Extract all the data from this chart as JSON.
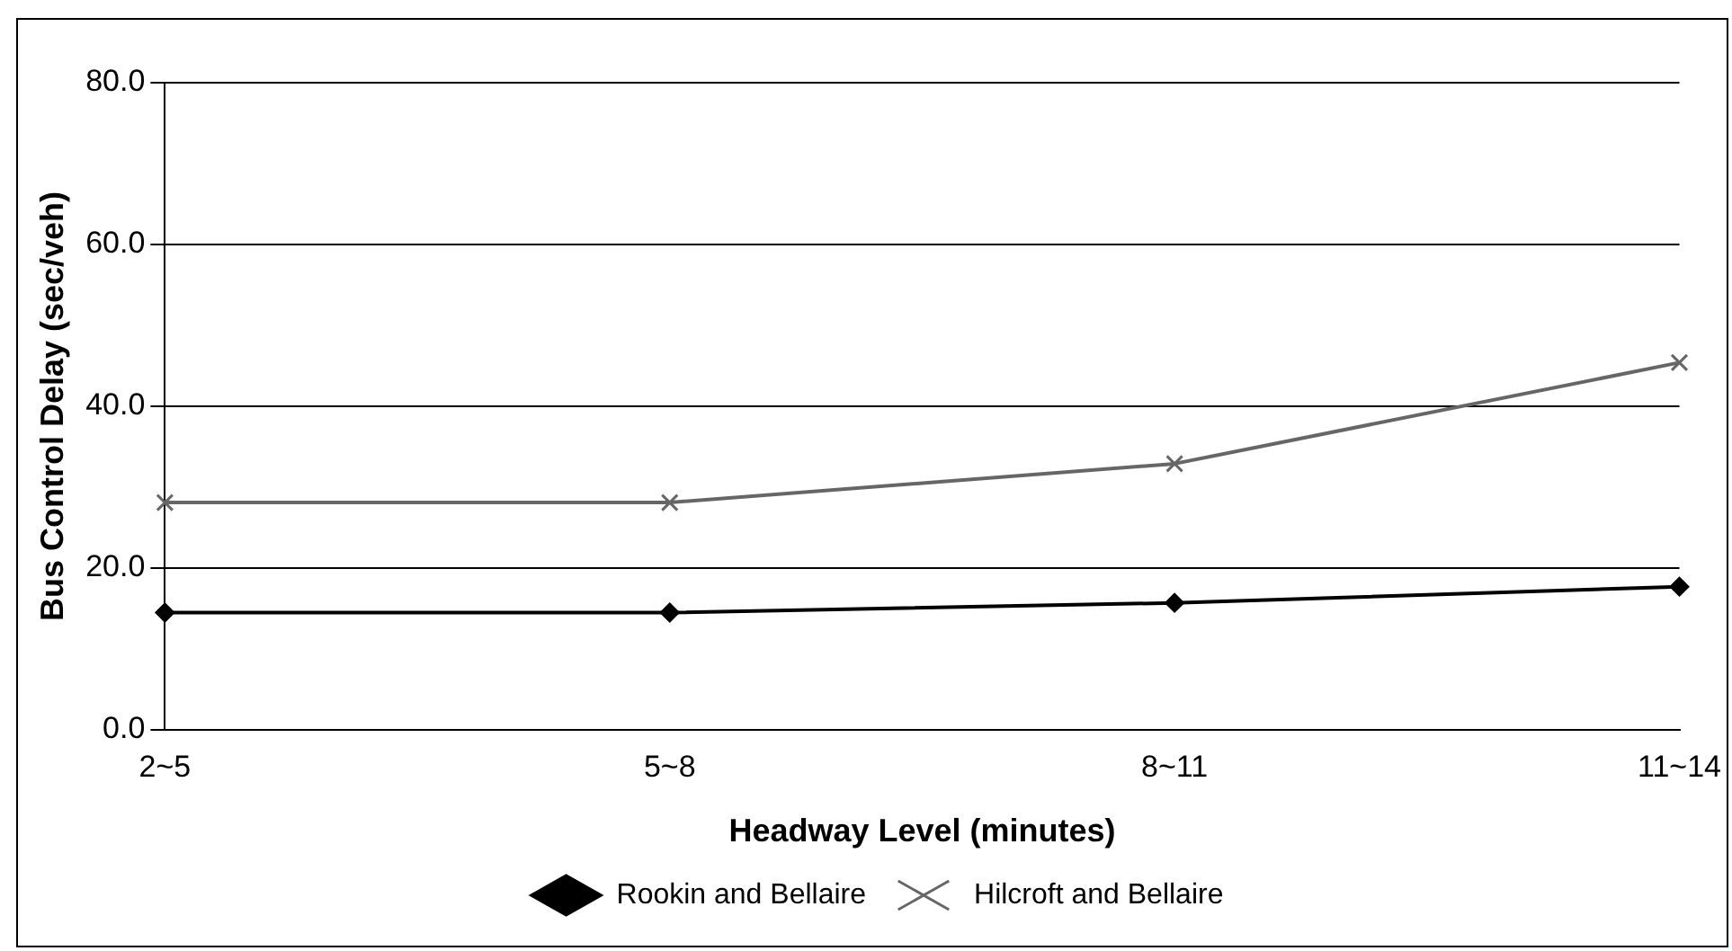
{
  "chart_data": {
    "type": "line",
    "xlabel": "Headway Level (minutes)",
    "ylabel": "Bus Control Delay (sec/veh)",
    "categories": [
      "2~5",
      "5~8",
      "8~11",
      "11~14"
    ],
    "series": [
      {
        "name": "Rookin and Bellaire",
        "color": "#000000",
        "marker": "diamond",
        "values": [
          14.5,
          14.5,
          15.7,
          17.7
        ]
      },
      {
        "name": "Hilcroft and Bellaire",
        "color": "#666666",
        "marker": "cross",
        "values": [
          28.1,
          28.1,
          32.9,
          45.4
        ]
      }
    ],
    "ylim": [
      0,
      80
    ],
    "yticks": [
      {
        "value": 0,
        "label": "0.0"
      },
      {
        "value": 20,
        "label": "20.0"
      },
      {
        "value": 40,
        "label": "40.0"
      },
      {
        "value": 60,
        "label": "60.0"
      },
      {
        "value": 80,
        "label": "80.0"
      }
    ],
    "grid": "y",
    "legend": "bottom",
    "line_style": "solid"
  }
}
